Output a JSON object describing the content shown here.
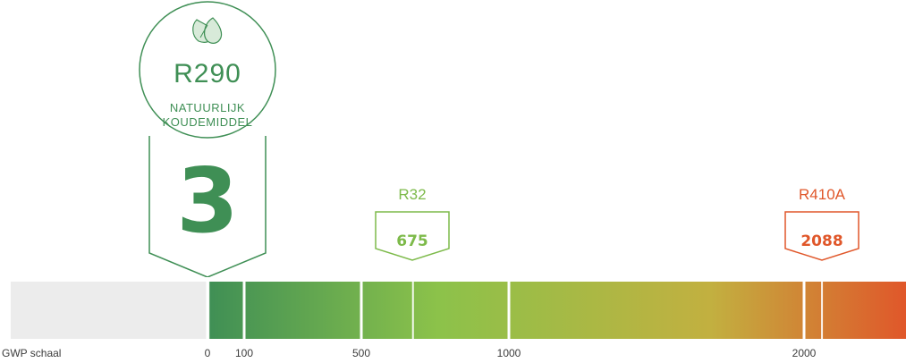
{
  "chart_data": {
    "type": "bar",
    "title": "",
    "xlabel": "GWP schaal",
    "ylabel": "",
    "scale_ticks": [
      0,
      100,
      500,
      1000,
      2000
    ],
    "markers": [
      {
        "name": "R290",
        "subtitle_line1": "NATUURLIJK",
        "subtitle_line2": "KOUDEMIDDEL",
        "value": 3,
        "value_label": "3",
        "color": "#3f8f55"
      },
      {
        "name": "R32",
        "value": 675,
        "value_label": "675",
        "color": "#7dba4a"
      },
      {
        "name": "R410A",
        "value": 2088,
        "value_label": "2088",
        "color": "#e0572a"
      }
    ],
    "colors": {
      "negative_zone": "#ececec",
      "gradient_start": "#3f8f55",
      "gradient_mid": "#8cc24a",
      "gradient_yellow": "#c2b040",
      "gradient_end": "#e0572a"
    }
  }
}
